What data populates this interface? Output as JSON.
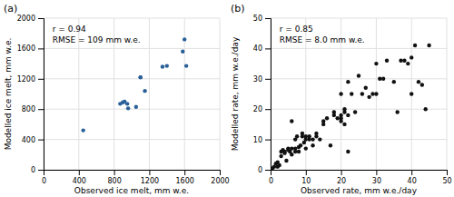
{
  "chart_data": [
    {
      "type": "scatter",
      "title": "(a)",
      "xlabel": "Observed ice melt, mm w.e.",
      "ylabel": "Modelled ice melt, mm w.e.",
      "annotations": [
        "r = 0.94",
        "RMSE = 109 mm w.e."
      ],
      "color": "#2a6099",
      "xlim": [
        0,
        2000
      ],
      "ylim": [
        0,
        2000
      ],
      "xticks": [
        0,
        400,
        800,
        1200,
        1600,
        2000
      ],
      "yticks": [
        0,
        400,
        800,
        1200,
        1600,
        2000
      ],
      "grid": true,
      "x": [
        450,
        870,
        900,
        920,
        950,
        960,
        1050,
        1100,
        1100,
        1150,
        1350,
        1400,
        1580,
        1600,
        1620
      ],
      "values": [
        520,
        870,
        890,
        900,
        870,
        810,
        830,
        1220,
        1220,
        1040,
        1360,
        1370,
        1560,
        1720,
        1370
      ]
    },
    {
      "type": "scatter",
      "title": "(b)",
      "xlabel": "Observed rate, mm w.e./day",
      "ylabel": "Modelled rate, mm w.e./day",
      "annotations": [
        "r = 0.85",
        "RMSE = 8.0 mm w.e."
      ],
      "color": "#111111",
      "xlim": [
        0,
        50
      ],
      "ylim": [
        0,
        50
      ],
      "xticks": [
        0,
        10,
        20,
        30,
        40,
        50
      ],
      "yticks": [
        0,
        10,
        20,
        30,
        40,
        50
      ],
      "grid": true,
      "x": [
        0.5,
        1,
        1.5,
        2,
        2,
        2.5,
        3,
        3,
        3.5,
        4,
        4,
        4.5,
        5,
        5,
        5.5,
        6,
        6,
        6,
        7,
        7,
        7,
        7.5,
        8,
        8,
        8.5,
        9,
        9,
        9.5,
        10,
        10,
        10,
        11,
        11,
        12,
        12,
        13,
        13,
        14,
        15,
        15,
        16,
        17,
        18,
        18,
        19,
        20,
        20,
        20,
        20,
        21,
        21,
        21,
        22,
        22,
        22,
        23,
        24,
        25,
        26,
        27,
        28,
        29,
        30,
        30,
        31,
        32,
        33,
        35,
        36,
        37,
        38,
        39,
        40,
        40,
        41,
        42,
        43,
        44,
        45
      ],
      "values": [
        0.5,
        1,
        2,
        1,
        2.5,
        1.5,
        4.5,
        6,
        6.5,
        5.5,
        6,
        3,
        6.5,
        7,
        6,
        16,
        7,
        5,
        6,
        7,
        10,
        11,
        6,
        7.5,
        8,
        11,
        12,
        9,
        10,
        11,
        7,
        10,
        11,
        8,
        10,
        12,
        11,
        10,
        15,
        16,
        17,
        8,
        18,
        19,
        17,
        25,
        16,
        17,
        18,
        19,
        15,
        20,
        18,
        6,
        29,
        25,
        19,
        31,
        25,
        27,
        24,
        25,
        25,
        35,
        30,
        30,
        36,
        29,
        19,
        36,
        36,
        35,
        25,
        37,
        41,
        29,
        28,
        20,
        41
      ]
    }
  ]
}
